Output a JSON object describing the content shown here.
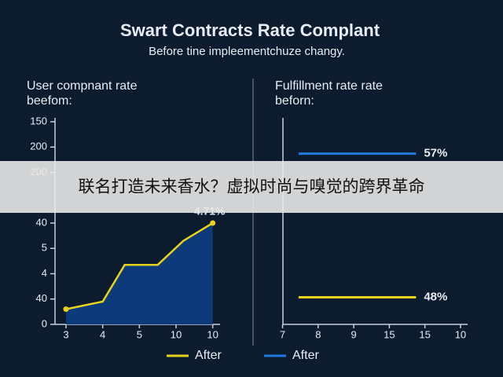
{
  "title": "Swart Contracts Rate Complant",
  "subtitle": "Before tine impleementchuze changy.",
  "banner": "联名打造未来香水？虚拟时尚与嗅觉的跨界革命",
  "chart_data": [
    {
      "type": "area",
      "title": [
        "User compnant rate",
        "beefom:"
      ],
      "x": [
        0,
        1,
        1.6,
        2.5,
        3.2,
        4
      ],
      "values": [
        0.6,
        0.9,
        2.35,
        2.35,
        3.3,
        4.0
      ],
      "color": "#e8d31a",
      "fill": "#0d3a7a",
      "annotation": "4.71%",
      "xlim": [
        -0.3,
        4.2
      ],
      "xticks": [
        {
          "value": 0,
          "label": "3"
        },
        {
          "value": 1,
          "label": "4"
        },
        {
          "value": 2,
          "label": "5"
        },
        {
          "value": 3,
          "label": "10"
        },
        {
          "value": 4,
          "label": "10"
        }
      ],
      "ylim": [
        0,
        8
      ],
      "yticks": [
        0,
        {
          "value": 1,
          "label": "40"
        },
        {
          "value": 2,
          "label": "4"
        },
        {
          "value": 3,
          "label": "5"
        },
        {
          "value": 4,
          "label": "40"
        },
        {
          "value": 6,
          "label": "200"
        },
        {
          "value": 7,
          "label": "200"
        },
        {
          "value": 8,
          "label": "150"
        }
      ]
    },
    {
      "type": "line",
      "title": [
        "Fulfillment rate rate",
        "beforn:"
      ],
      "series": [
        {
          "name": "After",
          "color": "#e8d31a",
          "x": [
            0.45,
            3.75
          ],
          "values": [
            48,
            48
          ],
          "value_labels": [
            null,
            "48%"
          ]
        },
        {
          "name": "After",
          "color": "#1f7ae0",
          "x": [
            0.45,
            3.75
          ],
          "values": [
            57,
            57
          ],
          "value_labels": [
            null,
            "57%"
          ]
        }
      ],
      "xlim": [
        -0.1,
        5.2
      ],
      "xticks": [
        {
          "value": 0,
          "label": "7"
        },
        {
          "value": 1,
          "label": "8"
        },
        {
          "value": 2,
          "label": "9"
        },
        {
          "value": 3,
          "label": "15"
        },
        {
          "value": 4,
          "label": "15"
        },
        {
          "value": 5,
          "label": "10"
        }
      ],
      "ylim": [
        46.3,
        59
      ]
    }
  ]
}
